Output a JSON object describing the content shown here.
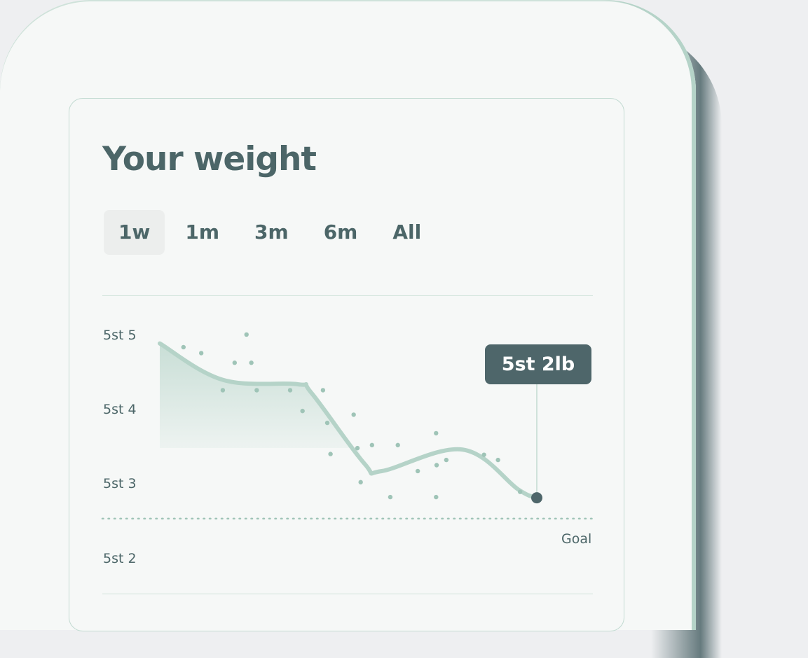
{
  "card": {
    "title": "Your weight",
    "tabs": [
      {
        "label": "1w",
        "active": true
      },
      {
        "label": "1m",
        "active": false
      },
      {
        "label": "3m",
        "active": false
      },
      {
        "label": "6m",
        "active": false
      },
      {
        "label": "All",
        "active": false
      }
    ]
  },
  "colors": {
    "text": "#4c6668",
    "line": "#b5d3c8",
    "accent": "#4e666a",
    "background": "#eeeff1",
    "surface": "#f6f8f7"
  },
  "chart_data": {
    "type": "line",
    "xlim": [
      0,
      7
    ],
    "ylim": [
      72,
      75
    ],
    "y_unit": "lb (total)",
    "y_ticks": [
      {
        "value": 75,
        "label": "5st 5"
      },
      {
        "value": 74,
        "label": "5st 4"
      },
      {
        "value": 73,
        "label": "5st 3"
      },
      {
        "value": 72,
        "label": "5st 2"
      }
    ],
    "goal": {
      "value": 72.53,
      "label": "Goal"
    },
    "trend": [
      [
        0,
        74.89
      ],
      [
        1.17,
        74.4
      ],
      [
        2.56,
        74.34
      ],
      [
        2.82,
        74.22
      ],
      [
        3.8,
        73.27
      ],
      [
        4.12,
        73.17
      ],
      [
        5.62,
        73.46
      ],
      [
        6.66,
        72.92
      ],
      [
        7.0,
        72.81
      ]
    ],
    "readings": [
      [
        0.44,
        74.84
      ],
      [
        0.77,
        74.76
      ],
      [
        1.39,
        74.63
      ],
      [
        1.61,
        75.01
      ],
      [
        1.7,
        74.63
      ],
      [
        1.17,
        74.26
      ],
      [
        1.8,
        74.26
      ],
      [
        2.42,
        74.26
      ],
      [
        3.03,
        74.26
      ],
      [
        2.65,
        73.98
      ],
      [
        3.11,
        73.82
      ],
      [
        3.17,
        73.4
      ],
      [
        3.6,
        73.93
      ],
      [
        3.67,
        73.48
      ],
      [
        3.73,
        73.02
      ],
      [
        3.94,
        73.52
      ],
      [
        4.28,
        72.82
      ],
      [
        4.42,
        73.52
      ],
      [
        4.79,
        73.17
      ],
      [
        5.13,
        73.68
      ],
      [
        5.14,
        73.25
      ],
      [
        5.13,
        72.82
      ],
      [
        5.32,
        73.32
      ],
      [
        6.02,
        73.39
      ],
      [
        6.28,
        73.32
      ],
      [
        6.69,
        72.89
      ]
    ],
    "current": {
      "value": 72.81,
      "label": "5st 2lb"
    },
    "grid": false,
    "legend": "none"
  }
}
